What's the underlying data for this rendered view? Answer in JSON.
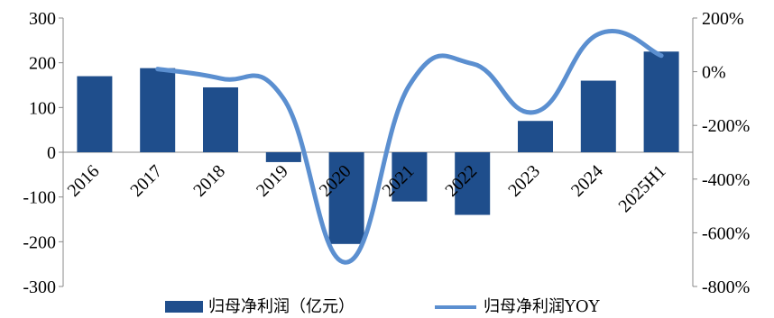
{
  "chart_data": {
    "type": "bar+line",
    "categories": [
      "2016",
      "2017",
      "2018",
      "2019",
      "2020",
      "2021",
      "2022",
      "2023",
      "2024",
      "2025H1"
    ],
    "series": [
      {
        "name": "归母净利润（亿元）",
        "type": "bar",
        "axis": "left",
        "color": "#1f4e8c",
        "values": [
          170,
          188,
          145,
          -22,
          -205,
          -110,
          -140,
          70,
          160,
          225
        ]
      },
      {
        "name": "归母净利润YOY",
        "type": "line",
        "axis": "right",
        "color": "#5b8fd0",
        "values": [
          null,
          10,
          -25,
          -100,
          -710,
          -50,
          30,
          -150,
          140,
          60
        ]
      }
    ],
    "y_left": {
      "min": -300,
      "max": 300,
      "step": 100,
      "ticks": [
        "300",
        "200",
        "100",
        "0",
        "-100",
        "-200",
        "-300"
      ]
    },
    "y_right": {
      "min": -800,
      "max": 200,
      "step": 200,
      "ticks": [
        "200%",
        "0%",
        "-200%",
        "-400%",
        "-600%",
        "-800%"
      ]
    },
    "legend": {
      "placement": "bottom"
    }
  }
}
